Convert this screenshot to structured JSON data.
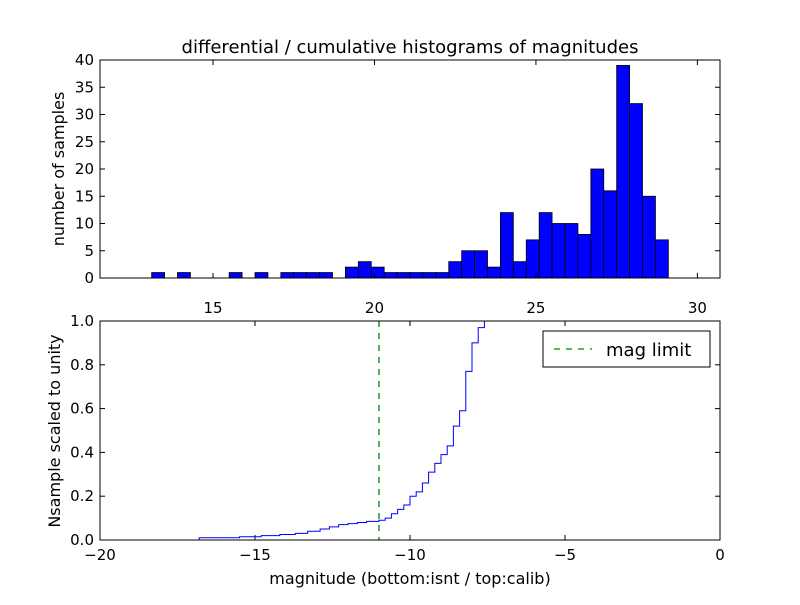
{
  "chart_data": [
    {
      "type": "bar",
      "title": "differential / cumulative histograms of magnitudes",
      "ylabel": "number of samples",
      "xlim": [
        11.5,
        30.7
      ],
      "ylim": [
        0,
        40
      ],
      "x_ticks": [
        "15",
        "20",
        "25",
        "30"
      ],
      "y_ticks": [
        "0",
        "5",
        "10",
        "15",
        "20",
        "25",
        "30",
        "35",
        "40"
      ],
      "bin_edges_start": 12.7,
      "bin_width": 0.4,
      "values": [
        0,
        1,
        0,
        1,
        0,
        0,
        0,
        1,
        0,
        1,
        0,
        1,
        1,
        1,
        1,
        0,
        2,
        3,
        2,
        1,
        1,
        1,
        1,
        1,
        3,
        5,
        5,
        2,
        12,
        3,
        7,
        12,
        10,
        10,
        8,
        20,
        16,
        39,
        32,
        15,
        7
      ],
      "bar_color": "#0000ff"
    },
    {
      "type": "line",
      "ylabel": "Nsample scaled to unity",
      "xlabel": "magnitude (bottom:isnt / top:calib)",
      "xlim": [
        -20,
        0
      ],
      "ylim": [
        0,
        1
      ],
      "x_ticks": [
        "−20",
        "−15",
        "−10",
        "−5",
        "0"
      ],
      "y_ticks": [
        "0.0",
        "0.2",
        "0.4",
        "0.6",
        "0.8",
        "1.0"
      ],
      "series": [
        {
          "style": "steps",
          "color": "#0000ff",
          "x": [
            -20,
            -16.8,
            -15.5,
            -14.8,
            -14.2,
            -13.7,
            -13.3,
            -12.9,
            -12.6,
            -12.3,
            -12.0,
            -11.7,
            -11.4,
            -11.0,
            -10.8,
            -10.6,
            -10.4,
            -10.2,
            -10.0,
            -9.8,
            -9.6,
            -9.4,
            -9.2,
            -9.0,
            -8.8,
            -8.6,
            -8.4,
            -8.2,
            -8.0,
            -7.8,
            -7.6,
            -7.4,
            -7.2,
            -7.0
          ],
          "y": [
            0.0,
            0.01,
            0.015,
            0.02,
            0.025,
            0.03,
            0.04,
            0.05,
            0.06,
            0.07,
            0.075,
            0.08,
            0.085,
            0.09,
            0.1,
            0.12,
            0.14,
            0.16,
            0.2,
            0.22,
            0.26,
            0.31,
            0.35,
            0.39,
            0.43,
            0.52,
            0.59,
            0.77,
            0.9,
            0.97,
            1.0,
            1.0,
            1.0,
            1.0
          ]
        },
        {
          "name": "mag limit",
          "style": "dashed-vertical",
          "color": "#008000",
          "x": -11
        }
      ],
      "legend": {
        "labels": [
          "mag limit"
        ],
        "position": "top-right"
      }
    }
  ]
}
